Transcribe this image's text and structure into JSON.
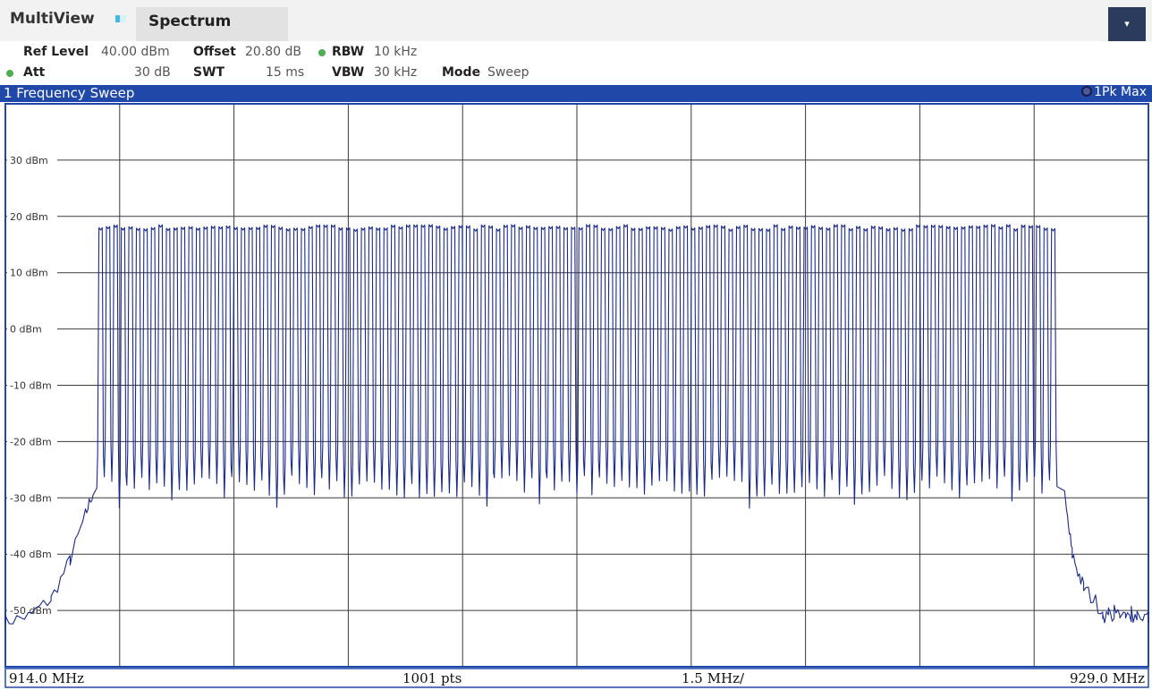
{
  "toolbar": {
    "multiview_label": "MultiView",
    "active_tab_label": "Spectrum",
    "dropdown_glyph": "▾",
    "icons": [
      "multiview-window-icon",
      "chevron-down-icon",
      "status-dot-icon",
      "trace-marker-icon"
    ]
  },
  "settings": {
    "ref_level_key": "Ref Level",
    "ref_level_value": "40.00 dBm",
    "offset_key": "Offset",
    "offset_value": "20.80 dB",
    "rbw_key": "RBW",
    "rbw_value": "10 kHz",
    "att_key": "Att",
    "att_value": "30 dB",
    "swt_key": "SWT",
    "swt_value": "15 ms",
    "vbw_key": "VBW",
    "vbw_value": "30 kHz",
    "mode_key": "Mode",
    "mode_value": "Sweep",
    "status_color": "#4caf50"
  },
  "diagram": {
    "title": "1 Frequency Sweep",
    "trace_label": "1Pk Max",
    "header_color": "#1f48a8"
  },
  "chart_data": {
    "type": "line",
    "title": "1 Frequency Sweep",
    "xlabel": "",
    "ylabel": "",
    "xlim": [
      914.0,
      929.0
    ],
    "ylim": [
      -60,
      40
    ],
    "x_unit": "MHz",
    "y_unit": "dBm",
    "y_ticks": [
      30,
      20,
      10,
      0,
      -10,
      -20,
      -30,
      -40,
      -50
    ],
    "y_tick_labels": [
      "30 dBm",
      "20 dBm",
      "10 dBm",
      "0 dBm",
      "-10 dBm",
      "-20 dBm",
      "-30 dBm",
      "-40 dBm",
      "-50 dBm"
    ],
    "x_divisions": 10,
    "grid": true,
    "trace_color": "#1a2a8c",
    "footer": {
      "start": "914.0 MHz",
      "points": "1001 pts",
      "span_per_div": "1.5 MHz/",
      "stop": "929.0 MHz"
    },
    "series": [
      {
        "name": "1Pk Max",
        "description_points": {
          "band_start_mhz": 915.2,
          "band_stop_mhz": 927.8,
          "channel_count": 128,
          "channel_peak_dbm": 18,
          "channel_trough_dbm": -28,
          "noise_floor_dbm": -51,
          "edge_points": [
            [
              914.0,
              -52
            ],
            [
              914.3,
              -51
            ],
            [
              914.6,
              -48
            ],
            [
              914.85,
              -41
            ],
            [
              915.05,
              -33
            ],
            [
              915.15,
              -29
            ],
            [
              927.9,
              -30
            ],
            [
              928.0,
              -40
            ],
            [
              928.15,
              -46
            ],
            [
              928.4,
              -50
            ],
            [
              929.0,
              -51
            ]
          ]
        }
      }
    ]
  }
}
